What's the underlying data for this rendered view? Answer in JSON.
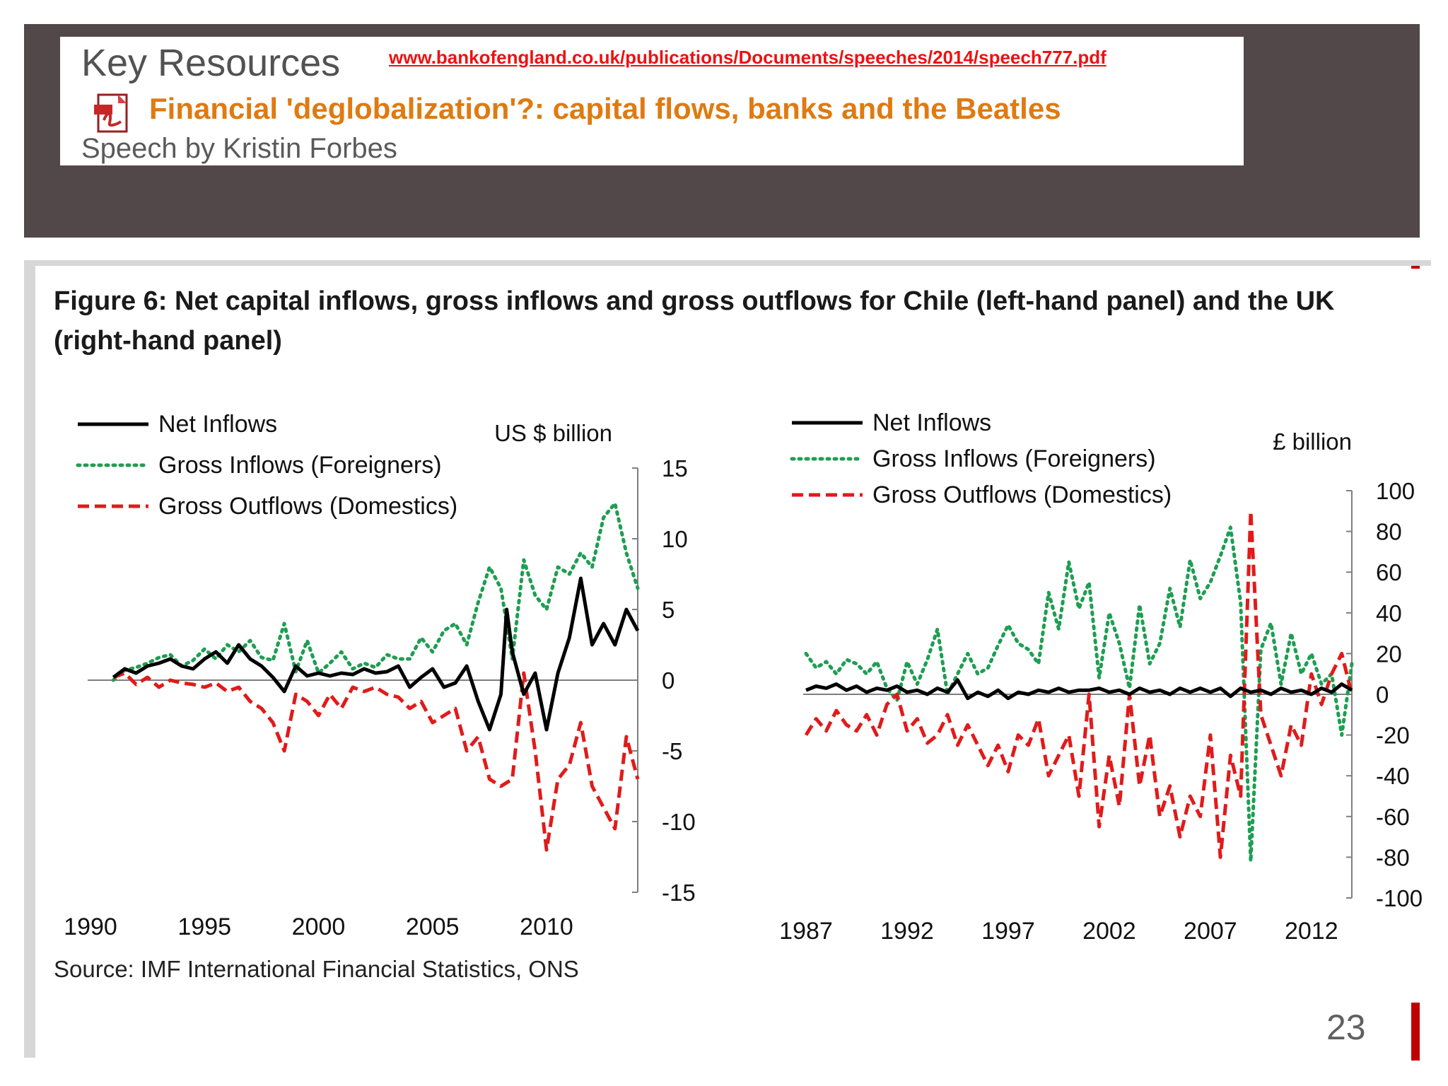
{
  "header": {
    "title": "Key Resources",
    "url": "www.bankofengland.co.uk/publications/Documents/speeches/2014/speech777.pdf",
    "speech_title": "Financial 'deglobalization'?: capital flows, banks and the Beatles",
    "speaker": "Speech by Kristin Forbes",
    "icon": "pdf-icon"
  },
  "figure": {
    "title": "Figure 6: Net capital inflows, gross inflows and gross outflows for Chile (left-hand panel) and the UK (right-hand panel)",
    "source": "Source: IMF International Financial Statistics, ONS"
  },
  "slide": {
    "page_number": "23"
  },
  "colors": {
    "net": "#000000",
    "gross_in": "#1e9e52",
    "gross_out": "#e01b1b",
    "header_bg": "#524849",
    "accent_red": "#c00000"
  },
  "chart_data": [
    {
      "type": "line",
      "panel": "Chile",
      "unit_label": "US $ billion",
      "ylim": [
        -15,
        15
      ],
      "yticks": [
        15,
        10,
        5,
        0,
        -5,
        -10,
        -15
      ],
      "xlim": [
        1990,
        2014
      ],
      "xticks": [
        1990,
        1995,
        2000,
        2005,
        2010
      ],
      "legend": [
        "Net Inflows",
        "Gross Inflows (Foreigners)",
        "Gross Outflows (Domestics)"
      ],
      "legend_placement": "top-left",
      "series": [
        {
          "name": "Net Inflows",
          "style": "solid",
          "x": [
            1991.0,
            1991.5,
            1992.0,
            1992.5,
            1993.0,
            1993.5,
            1994.0,
            1994.5,
            1995.0,
            1995.5,
            1996.0,
            1996.5,
            1997.0,
            1997.5,
            1998.0,
            1998.5,
            1999.0,
            1999.5,
            2000.0,
            2000.5,
            2001.0,
            2001.5,
            2002.0,
            2002.5,
            2003.0,
            2003.5,
            2004.0,
            2004.5,
            2005.0,
            2005.5,
            2006.0,
            2006.5,
            2007.0,
            2007.5,
            2008.0,
            2008.25,
            2008.5,
            2009.0,
            2009.5,
            2010.0,
            2010.5,
            2011.0,
            2011.5,
            2012.0,
            2012.5,
            2013.0,
            2013.5,
            2014.0
          ],
          "values": [
            0.2,
            0.8,
            0.5,
            1.0,
            1.2,
            1.5,
            1.0,
            0.8,
            1.5,
            2.0,
            1.2,
            2.5,
            1.5,
            1.0,
            0.2,
            -0.8,
            1.0,
            0.3,
            0.5,
            0.3,
            0.5,
            0.4,
            0.8,
            0.5,
            0.6,
            1.0,
            -0.5,
            0.2,
            0.8,
            -0.5,
            -0.2,
            1.0,
            -1.5,
            -3.5,
            -1.0,
            5.0,
            2.0,
            -1.0,
            0.5,
            -3.5,
            0.5,
            3.0,
            7.2,
            2.5,
            4.0,
            2.5,
            5.0,
            3.5
          ]
        },
        {
          "name": "Gross Inflows (Foreigners)",
          "style": "dotted",
          "x": [
            1991.0,
            1991.5,
            1992.0,
            1992.5,
            1993.0,
            1993.5,
            1994.0,
            1994.5,
            1995.0,
            1995.5,
            1996.0,
            1996.5,
            1997.0,
            1997.5,
            1998.0,
            1998.5,
            1999.0,
            1999.5,
            2000.0,
            2000.5,
            2001.0,
            2001.5,
            2002.0,
            2002.5,
            2003.0,
            2003.5,
            2004.0,
            2004.5,
            2005.0,
            2005.5,
            2006.0,
            2006.5,
            2007.0,
            2007.5,
            2008.0,
            2008.5,
            2009.0,
            2009.5,
            2010.0,
            2010.5,
            2011.0,
            2011.5,
            2012.0,
            2012.5,
            2013.0,
            2013.5,
            2014.0
          ],
          "values": [
            0.0,
            0.7,
            0.9,
            1.2,
            1.6,
            1.8,
            1.0,
            1.4,
            2.2,
            1.5,
            2.5,
            2.0,
            2.8,
            1.6,
            1.4,
            4.0,
            0.6,
            2.8,
            0.5,
            1.2,
            2.0,
            0.8,
            1.2,
            0.9,
            1.8,
            1.5,
            1.5,
            3.0,
            2.0,
            3.5,
            4.0,
            2.5,
            5.5,
            8.0,
            6.5,
            1.5,
            8.5,
            6.0,
            5.0,
            8.0,
            7.5,
            9.0,
            8.0,
            11.5,
            12.5,
            9.0,
            6.5
          ]
        },
        {
          "name": "Gross Outflows (Domestics)",
          "style": "dashed",
          "x": [
            1991.0,
            1991.5,
            1992.0,
            1992.5,
            1993.0,
            1993.5,
            1994.0,
            1994.5,
            1995.0,
            1995.5,
            1996.0,
            1996.5,
            1997.0,
            1997.5,
            1998.0,
            1998.5,
            1999.0,
            1999.5,
            2000.0,
            2000.5,
            2001.0,
            2001.5,
            2002.0,
            2002.5,
            2003.0,
            2003.5,
            2004.0,
            2004.5,
            2005.0,
            2005.5,
            2006.0,
            2006.5,
            2007.0,
            2007.5,
            2008.0,
            2008.5,
            2009.0,
            2009.5,
            2010.0,
            2010.5,
            2011.0,
            2011.5,
            2012.0,
            2012.5,
            2013.0,
            2013.5,
            2014.0
          ],
          "values": [
            0.2,
            0.5,
            -0.3,
            0.2,
            -0.5,
            0.0,
            -0.2,
            -0.3,
            -0.5,
            -0.2,
            -0.8,
            -0.5,
            -1.5,
            -2.0,
            -3.0,
            -5.0,
            -1.0,
            -1.5,
            -2.5,
            -1.0,
            -2.0,
            -0.5,
            -0.8,
            -0.5,
            -1.0,
            -1.2,
            -2.0,
            -1.5,
            -3.0,
            -2.5,
            -2.0,
            -5.0,
            -4.0,
            -7.0,
            -7.5,
            -7.0,
            0.5,
            -5.0,
            -12.0,
            -7.0,
            -6.0,
            -3.0,
            -7.5,
            -9.0,
            -10.5,
            -4.0,
            -7.0
          ]
        }
      ]
    },
    {
      "type": "line",
      "panel": "UK",
      "unit_label": "£ billion",
      "ylim": [
        -100,
        100
      ],
      "yticks": [
        100,
        80,
        60,
        40,
        20,
        0,
        -20,
        -40,
        -60,
        -80,
        -100
      ],
      "xlim": [
        1987,
        2014
      ],
      "xticks": [
        1987,
        1992,
        1997,
        2002,
        2007,
        2012
      ],
      "legend": [
        "Net Inflows",
        "Gross Inflows (Foreigners)",
        "Gross Outflows (Domestics)"
      ],
      "legend_placement": "top-left",
      "series": [
        {
          "name": "Net Inflows",
          "style": "solid",
          "x": [
            1987.0,
            1987.5,
            1988.0,
            1988.5,
            1989.0,
            1989.5,
            1990.0,
            1990.5,
            1991.0,
            1991.5,
            1992.0,
            1992.5,
            1993.0,
            1993.5,
            1994.0,
            1994.5,
            1995.0,
            1995.5,
            1996.0,
            1996.5,
            1997.0,
            1997.5,
            1998.0,
            1998.5,
            1999.0,
            1999.5,
            2000.0,
            2000.5,
            2001.0,
            2001.5,
            2002.0,
            2002.5,
            2003.0,
            2003.5,
            2004.0,
            2004.5,
            2005.0,
            2005.5,
            2006.0,
            2006.5,
            2007.0,
            2007.5,
            2008.0,
            2008.5,
            2009.0,
            2009.5,
            2010.0,
            2010.5,
            2011.0,
            2011.5,
            2012.0,
            2012.5,
            2013.0,
            2013.5,
            2014.0
          ],
          "values": [
            2,
            4,
            3,
            5,
            2,
            4,
            1,
            3,
            2,
            4,
            1,
            2,
            0,
            3,
            1,
            7,
            -2,
            1,
            -1,
            2,
            -2,
            1,
            0,
            2,
            1,
            3,
            1,
            2,
            2,
            3,
            1,
            2,
            0,
            3,
            1,
            2,
            0,
            3,
            1,
            3,
            1,
            3,
            -1,
            3,
            1,
            2,
            0,
            3,
            1,
            2,
            0,
            3,
            1,
            5,
            2
          ]
        },
        {
          "name": "Gross Inflows (Foreigners)",
          "style": "dotted",
          "x": [
            1987.0,
            1987.5,
            1988.0,
            1988.5,
            1989.0,
            1989.5,
            1990.0,
            1990.5,
            1991.0,
            1991.5,
            1992.0,
            1992.5,
            1993.0,
            1993.5,
            1994.0,
            1994.5,
            1995.0,
            1995.5,
            1996.0,
            1996.5,
            1997.0,
            1997.5,
            1998.0,
            1998.5,
            1999.0,
            1999.5,
            2000.0,
            2000.5,
            2001.0,
            2001.5,
            2002.0,
            2002.5,
            2003.0,
            2003.5,
            2004.0,
            2004.5,
            2005.0,
            2005.5,
            2006.0,
            2006.5,
            2007.0,
            2007.5,
            2008.0,
            2008.5,
            2009.0,
            2009.5,
            2010.0,
            2010.5,
            2011.0,
            2011.5,
            2012.0,
            2012.5,
            2013.0,
            2013.5,
            2014.0
          ],
          "values": [
            20,
            13,
            16,
            10,
            17,
            15,
            10,
            16,
            3,
            -3,
            16,
            5,
            17,
            32,
            0,
            10,
            20,
            10,
            13,
            24,
            34,
            25,
            22,
            15,
            50,
            32,
            65,
            42,
            55,
            8,
            40,
            25,
            3,
            44,
            15,
            25,
            52,
            33,
            66,
            47,
            55,
            68,
            82,
            45,
            -82,
            22,
            35,
            5,
            30,
            10,
            20,
            5,
            10,
            -20,
            15
          ]
        },
        {
          "name": "Gross Outflows (Domestics)",
          "style": "dashed",
          "x": [
            1987.0,
            1987.5,
            1988.0,
            1988.5,
            1989.0,
            1989.5,
            1990.0,
            1990.5,
            1991.0,
            1991.5,
            1992.0,
            1992.5,
            1993.0,
            1993.5,
            1994.0,
            1994.5,
            1995.0,
            1995.5,
            1996.0,
            1996.5,
            1997.0,
            1997.5,
            1998.0,
            1998.5,
            1999.0,
            1999.5,
            2000.0,
            2000.5,
            2001.0,
            2001.5,
            2002.0,
            2002.5,
            2003.0,
            2003.5,
            2004.0,
            2004.5,
            2005.0,
            2005.5,
            2006.0,
            2006.5,
            2007.0,
            2007.5,
            2008.0,
            2008.5,
            2009.0,
            2009.5,
            2010.0,
            2010.5,
            2011.0,
            2011.5,
            2012.0,
            2012.5,
            2013.0,
            2013.5,
            2014.0
          ],
          "values": [
            -20,
            -12,
            -18,
            -8,
            -15,
            -18,
            -10,
            -20,
            -5,
            0,
            -18,
            -12,
            -24,
            -20,
            -10,
            -25,
            -15,
            -25,
            -35,
            -25,
            -38,
            -20,
            -25,
            -12,
            -40,
            -30,
            -20,
            -50,
            0,
            -65,
            -30,
            -55,
            0,
            -45,
            -20,
            -60,
            -45,
            -70,
            -50,
            -60,
            -20,
            -80,
            -30,
            -50,
            90,
            -10,
            -25,
            -40,
            -15,
            -25,
            10,
            -5,
            10,
            20,
            0
          ]
        }
      ]
    }
  ]
}
